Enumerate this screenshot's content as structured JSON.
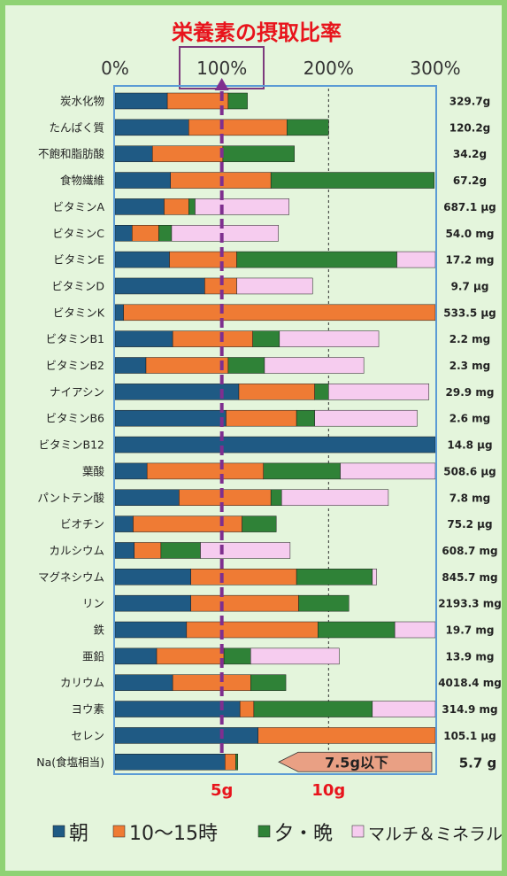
{
  "chart_data": {
    "type": "bar",
    "stacked": true,
    "orientation": "horizontal",
    "title": "栄養素の摂取比率",
    "x_ticks": [
      "0%",
      "100%",
      "200%",
      "300%"
    ],
    "xlim": [
      0,
      300
    ],
    "unit": "%",
    "gridlines": [
      100,
      200
    ],
    "highlight_tick": "100%",
    "categories": [
      "炭水化物",
      "たんぱく質",
      "不飽和脂肪酸",
      "食物繊維",
      "ビタミンA",
      "ビタミンC",
      "ビタミンE",
      "ビタミンD",
      "ビタミンK",
      "ビタミンB1",
      "ビタミンB2",
      "ナイアシン",
      "ビタミンB6",
      "ビタミンB12",
      "葉酸",
      "パントテン酸",
      "ビオチン",
      "カルシウム",
      "マグネシウム",
      "リン",
      "鉄",
      "亜鉛",
      "カリウム",
      "ヨウ素",
      "セレン",
      "Na(食塩相当)"
    ],
    "amounts": [
      "329.7g",
      "120.2g",
      "34.2g",
      "67.2g",
      "687.1 μg",
      "54.0 mg",
      "17.2 mg",
      "9.7 μg",
      "533.5 μg",
      "2.2 mg",
      "2.3 mg",
      "29.9 mg",
      "2.6 mg",
      "14.8 μg",
      "508.6 μg",
      "7.8 mg",
      "75.2 μg",
      "608.7 mg",
      "845.7 mg",
      "2193.3 mg",
      "19.7 mg",
      "13.9 mg",
      "4018.4 mg",
      "314.9 mg",
      "105.1 μg",
      "5.7 g"
    ],
    "series": [
      {
        "name": "朝",
        "color": "#1f5a84",
        "values": [
          49,
          69,
          35,
          52,
          46,
          16,
          51,
          84,
          8,
          54,
          29,
          116,
          104,
          300,
          30,
          60,
          17,
          18,
          71,
          71,
          67,
          39,
          54,
          117,
          134,
          103
        ]
      },
      {
        "name": "10〜15時",
        "color": "#ef7b34",
        "values": [
          57,
          92,
          66,
          94,
          23,
          25,
          63,
          30,
          292,
          75,
          77,
          71,
          66,
          0,
          109,
          86,
          102,
          25,
          99,
          101,
          123,
          63,
          73,
          13,
          166,
          10
        ]
      },
      {
        "name": "夕・晩",
        "color": "#2f8237",
        "values": [
          18,
          39,
          67,
          153,
          6,
          12,
          150,
          0,
          0,
          25,
          34,
          13,
          17,
          0,
          72,
          10,
          32,
          37,
          71,
          47,
          72,
          25,
          33,
          111,
          0,
          2
        ]
      },
      {
        "name": "マルチ＆ミネラル",
        "color": "#f6ccef",
        "values": [
          0,
          0,
          0,
          0,
          88,
          100,
          37,
          71,
          0,
          93,
          93,
          94,
          96,
          0,
          89,
          100,
          0,
          84,
          4,
          0,
          39,
          83,
          0,
          59,
          0,
          0
        ]
      }
    ],
    "na_scale": {
      "ticks": [
        "5g",
        "10g"
      ],
      "limit_label": "7.5g以下"
    }
  }
}
